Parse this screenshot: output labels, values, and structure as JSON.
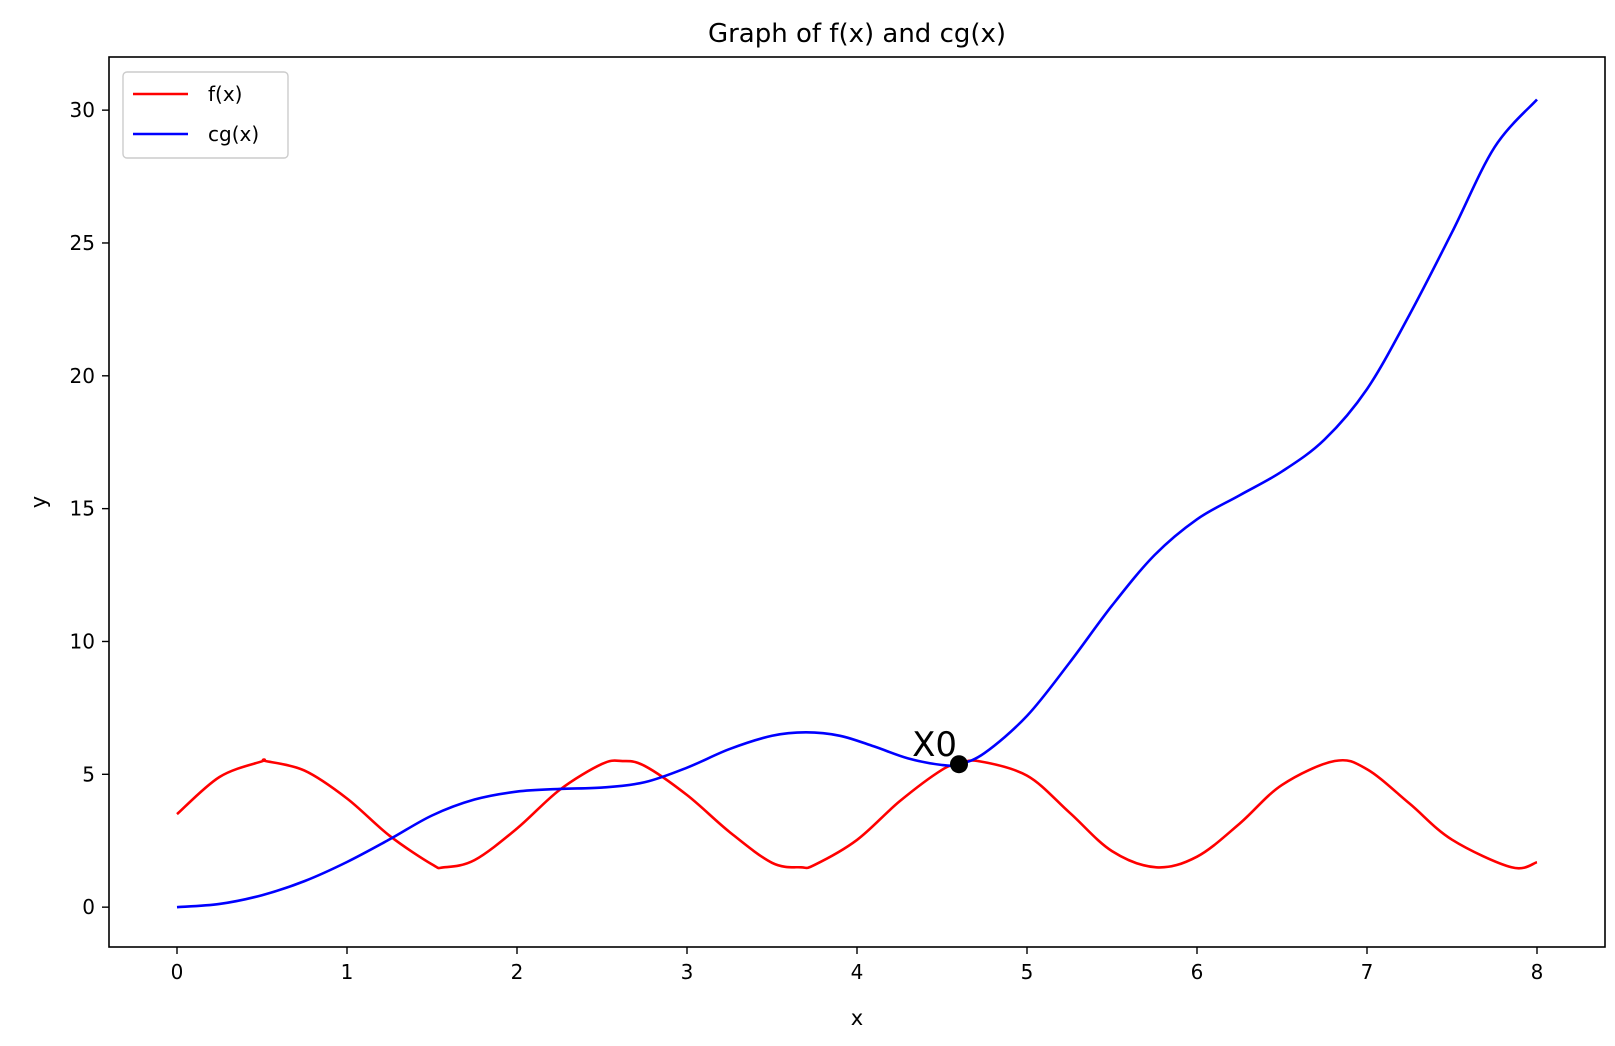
{
  "chart_data": {
    "type": "line",
    "title": "Graph of f(x) and cg(x)",
    "xlabel": "x",
    "ylabel": "y",
    "xlim": [
      -0.4,
      8.4
    ],
    "ylim": [
      -1.5,
      32
    ],
    "xticks": [
      0,
      1,
      2,
      3,
      4,
      5,
      6,
      7,
      8
    ],
    "yticks": [
      0,
      5,
      10,
      15,
      20,
      25,
      30
    ],
    "grid": false,
    "legend_position": "top-left",
    "series": [
      {
        "name": "f(x)",
        "color": "#ff0000",
        "x": [
          0,
          0.25,
          0.5,
          0.52,
          0.75,
          1.0,
          1.25,
          1.5,
          1.57,
          1.75,
          2.0,
          2.25,
          2.5,
          2.62,
          2.75,
          3.0,
          3.25,
          3.5,
          3.67,
          3.75,
          4.0,
          4.25,
          4.5,
          4.6,
          4.71,
          5.0,
          5.25,
          5.5,
          5.76,
          6.0,
          6.25,
          6.5,
          6.81,
          7.0,
          7.25,
          7.5,
          7.85,
          8.0
        ],
        "y": [
          3.5,
          4.9,
          5.49,
          5.5,
          5.14,
          4.09,
          2.69,
          1.61,
          1.5,
          1.77,
          2.96,
          4.41,
          5.39,
          5.5,
          5.32,
          4.22,
          2.83,
          1.67,
          1.5,
          1.59,
          2.53,
          3.98,
          5.17,
          5.38,
          5.5,
          4.95,
          3.56,
          2.11,
          1.5,
          1.9,
          3.14,
          4.6,
          5.5,
          5.19,
          3.9,
          2.54,
          1.5,
          1.69
        ]
      },
      {
        "name": "cg(x)",
        "color": "#0000ff",
        "x": [
          0,
          0.25,
          0.5,
          0.75,
          1.0,
          1.25,
          1.5,
          1.75,
          2.0,
          2.25,
          2.5,
          2.75,
          3.0,
          3.25,
          3.5,
          3.7,
          3.9,
          4.1,
          4.3,
          4.5,
          4.6,
          4.75,
          5.0,
          5.25,
          5.5,
          5.75,
          6.0,
          6.25,
          6.5,
          6.75,
          7.0,
          7.25,
          7.5,
          7.75,
          8.0
        ],
        "y": [
          0,
          0.12,
          0.45,
          0.98,
          1.7,
          2.55,
          3.45,
          4.05,
          4.35,
          4.45,
          4.5,
          4.7,
          5.25,
          5.95,
          6.45,
          6.58,
          6.45,
          6.05,
          5.6,
          5.35,
          5.38,
          5.8,
          7.2,
          9.2,
          11.35,
          13.25,
          14.6,
          15.5,
          16.4,
          17.6,
          19.5,
          22.3,
          25.4,
          28.6,
          30.4
        ]
      }
    ],
    "markers": [
      {
        "label": "X0",
        "x": 4.6,
        "y": 5.38,
        "color": "#000000"
      }
    ]
  }
}
